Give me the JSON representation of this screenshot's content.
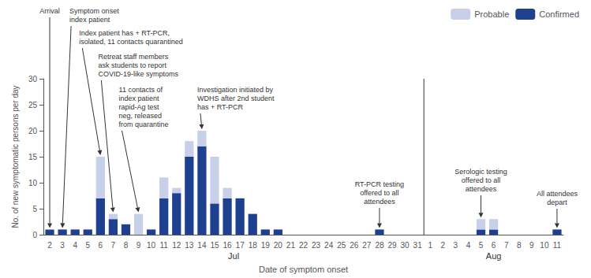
{
  "chart_data": {
    "type": "bar",
    "stacked": true,
    "xlabel": "Date of symptom onset",
    "ylabel": "No. of new symptomatic persons per day",
    "categories": [
      "2",
      "3",
      "4",
      "5",
      "6",
      "7",
      "8",
      "9",
      "10",
      "11",
      "12",
      "13",
      "14",
      "15",
      "16",
      "17",
      "18",
      "19",
      "20",
      "21",
      "22",
      "23",
      "24",
      "25",
      "26",
      "27",
      "28",
      "29",
      "30",
      "31",
      "1",
      "2",
      "3",
      "4",
      "5",
      "6",
      "7",
      "8",
      "9",
      "10",
      "11"
    ],
    "x_groups": [
      {
        "label": "Jul",
        "count": 30
      },
      {
        "label": "Aug",
        "count": 11
      }
    ],
    "series": [
      {
        "name": "Confirmed",
        "color": "#1f3f8f",
        "values": [
          1,
          1,
          1,
          1,
          7,
          3,
          2,
          0,
          1,
          7,
          8,
          15,
          17,
          6,
          7,
          7,
          4,
          1,
          1,
          0,
          0,
          0,
          0,
          0,
          0,
          0,
          1,
          0,
          0,
          0,
          0,
          0,
          0,
          0,
          1,
          1,
          0,
          0,
          0,
          0,
          1
        ]
      },
      {
        "name": "Probable",
        "color": "#c8cfe8",
        "values": [
          0,
          0,
          0,
          0,
          8,
          1,
          0,
          4,
          0,
          4,
          1,
          3,
          3,
          9,
          2,
          0,
          0,
          0,
          0,
          0,
          0,
          0,
          0,
          0,
          0,
          0,
          0,
          0,
          0,
          0,
          0,
          0,
          0,
          0,
          2,
          2,
          0,
          0,
          0,
          0,
          0
        ]
      }
    ],
    "ylim": [
      0,
      30
    ],
    "yticks": [
      0,
      5,
      10,
      15,
      20,
      25,
      30
    ],
    "grid": false,
    "legend": "upper right",
    "annotations": [
      {
        "text": "Arrival",
        "group": "Jul",
        "category": "2"
      },
      {
        "text": "Symptom onset\nindex patient",
        "group": "Jul",
        "category": "3"
      },
      {
        "text": "Index patient has + RT-PCR,\nisolated, 11 contacts quarantined",
        "group": "Jul",
        "category": "6"
      },
      {
        "text": "Retreat staff members\nask students to report\nCOVID-19-like symptoms",
        "group": "Jul",
        "category": "7"
      },
      {
        "text": "11 contacts of\nindex patient\nrapid-Ag test\nneg, released\nfrom quarantine",
        "group": "Jul",
        "category": "9"
      },
      {
        "text": "Investigation initiated by\nWDHS after 2nd student\nhas + RT-PCR",
        "group": "Jul",
        "category": "14"
      },
      {
        "text": "RT-PCR testing\noffered to all\nattendees",
        "group": "Jul",
        "category": "28"
      },
      {
        "text": "Serologic testing\noffered to all\nattendees",
        "group": "Aug",
        "category": "5"
      },
      {
        "text": "All attendees\ndepart",
        "group": "Aug",
        "category": "11"
      }
    ]
  }
}
